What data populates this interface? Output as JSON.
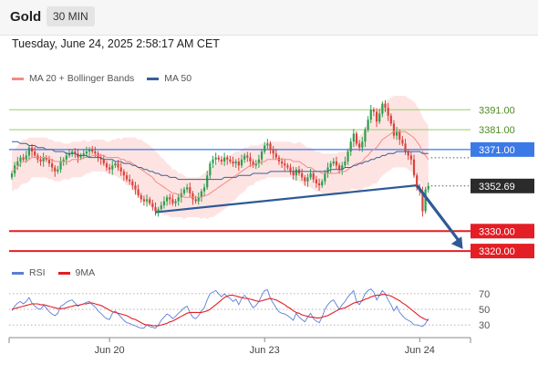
{
  "header": {
    "symbol": "Gold",
    "timeframe": "30 MIN",
    "datetime": "Tuesday, June 24, 2025 2:58:17 AM CET"
  },
  "legend": [
    {
      "label": "MA 20 + Bollinger Bands",
      "color": "#f28b82"
    },
    {
      "label": "MA 50",
      "color": "#3a5f98"
    }
  ],
  "rsi_legend": [
    {
      "label": "RSI",
      "color": "#5b7fd6"
    },
    {
      "label": "9MA",
      "color": "#e31e24"
    }
  ],
  "colors": {
    "bull": "#2e9e4f",
    "bear": "#d9433a",
    "trendline": "#2e5a96",
    "arrow": "#2e5a96",
    "support": "#e31e24",
    "resistance": "#9acd6a",
    "current_level": "#3b79e6",
    "bollinger_fill": "#fde3e1",
    "price_tag": "#2b2b2b"
  },
  "chart_data": [
    {
      "type": "candlestick",
      "title": "",
      "instrument": "Gold",
      "timeframe": "30 MIN",
      "x_ticks": [
        "Jun 20",
        "Jun 23",
        "Jun 24"
      ],
      "ylim": [
        3315,
        3398
      ],
      "current_price": 3352.69,
      "levels": [
        {
          "value": 3391.0,
          "label": "3391.00",
          "kind": "resistance"
        },
        {
          "value": 3381.0,
          "label": "3381.00",
          "kind": "resistance"
        },
        {
          "value": 3371.0,
          "label": "3371.00",
          "kind": "pivot"
        },
        {
          "value": 3330.0,
          "label": "3330.00",
          "kind": "support"
        },
        {
          "value": 3320.0,
          "label": "3320.00",
          "kind": "support"
        }
      ],
      "trendline": {
        "from": {
          "bar": 50,
          "price": 3339.5
        },
        "to": {
          "bar": 141,
          "price": 3353
        }
      },
      "projection_arrow": {
        "from": {
          "bar": 141,
          "price": 3353
        },
        "to": {
          "bar": 157,
          "price": 3321
        }
      },
      "close": [
        3359,
        3363,
        3365,
        3367,
        3366,
        3368,
        3372,
        3370,
        3368,
        3366,
        3365,
        3367,
        3366,
        3364,
        3362,
        3360,
        3361,
        3365,
        3366,
        3368,
        3369,
        3370,
        3369,
        3367,
        3368,
        3369,
        3370,
        3371,
        3370,
        3369,
        3367,
        3366,
        3364,
        3362,
        3361,
        3363,
        3364,
        3362,
        3360,
        3358,
        3356,
        3355,
        3353,
        3351,
        3348,
        3346,
        3345,
        3346,
        3344,
        3342,
        3340,
        3341,
        3343,
        3345,
        3347,
        3346,
        3344,
        3345,
        3347,
        3349,
        3351,
        3352,
        3349,
        3346,
        3345,
        3347,
        3350,
        3352,
        3358,
        3364,
        3366,
        3367,
        3366,
        3365,
        3367,
        3366,
        3365,
        3364,
        3365,
        3363,
        3366,
        3368,
        3367,
        3365,
        3363,
        3364,
        3366,
        3370,
        3373,
        3374,
        3371,
        3369,
        3367,
        3365,
        3364,
        3363,
        3362,
        3360,
        3358,
        3361,
        3359,
        3357,
        3355,
        3357,
        3359,
        3356,
        3354,
        3353,
        3355,
        3359,
        3362,
        3364,
        3365,
        3363,
        3361,
        3363,
        3365,
        3370,
        3375,
        3379,
        3374,
        3372,
        3375,
        3381,
        3386,
        3391,
        3390,
        3385,
        3389,
        3394,
        3392,
        3388,
        3384,
        3378,
        3380,
        3376,
        3374,
        3370,
        3368,
        3366,
        3358,
        3352,
        3350,
        3340,
        3351,
        3352.69
      ],
      "ma20": [
        3360,
        3361,
        3362,
        3364,
        3365,
        3365,
        3366,
        3367,
        3367,
        3367,
        3367,
        3367,
        3367,
        3366,
        3366,
        3365,
        3365,
        3365,
        3365,
        3365,
        3365,
        3366,
        3366,
        3366,
        3366,
        3367,
        3367,
        3367,
        3368,
        3368,
        3368,
        3368,
        3368,
        3367,
        3367,
        3367,
        3367,
        3367,
        3366,
        3366,
        3365,
        3365,
        3364,
        3363,
        3362,
        3361,
        3360,
        3359,
        3358,
        3357,
        3355,
        3354,
        3353,
        3352,
        3351,
        3350,
        3349,
        3349,
        3348,
        3348,
        3347,
        3347,
        3347,
        3347,
        3347,
        3347,
        3347,
        3348,
        3348,
        3349,
        3350,
        3351,
        3352,
        3353,
        3354,
        3355,
        3356,
        3357,
        3358,
        3359,
        3360,
        3361,
        3362,
        3363,
        3363,
        3364,
        3364,
        3365,
        3365,
        3366,
        3366,
        3366,
        3366,
        3366,
        3366,
        3366,
        3366,
        3366,
        3365,
        3365,
        3365,
        3364,
        3363,
        3362,
        3362,
        3361,
        3360,
        3360,
        3359,
        3359,
        3359,
        3359,
        3359,
        3359,
        3360,
        3360,
        3360,
        3361,
        3362,
        3363,
        3364,
        3364,
        3365,
        3367,
        3368,
        3370,
        3371,
        3372,
        3374,
        3376,
        3377,
        3378,
        3379,
        3380,
        3380,
        3380,
        3380,
        3380,
        3379,
        3378,
        3377,
        3375,
        3373,
        3370,
        3368,
        3366
      ],
      "ma50": [
        3375,
        3375,
        3375,
        3374,
        3374,
        3374,
        3373,
        3373,
        3373,
        3372,
        3372,
        3372,
        3371,
        3371,
        3371,
        3370,
        3370,
        3370,
        3370,
        3369,
        3369,
        3369,
        3369,
        3368,
        3368,
        3368,
        3368,
        3367,
        3367,
        3367,
        3367,
        3367,
        3366,
        3366,
        3366,
        3366,
        3365,
        3365,
        3365,
        3364,
        3364,
        3364,
        3363,
        3363,
        3362,
        3362,
        3361,
        3361,
        3360,
        3360,
        3359,
        3359,
        3358,
        3358,
        3358,
        3357,
        3357,
        3357,
        3356,
        3356,
        3356,
        3356,
        3356,
        3356,
        3356,
        3356,
        3356,
        3356,
        3356,
        3356,
        3356,
        3356,
        3356,
        3356,
        3357,
        3357,
        3357,
        3357,
        3357,
        3358,
        3358,
        3358,
        3358,
        3358,
        3359,
        3359,
        3359,
        3359,
        3359,
        3359,
        3360,
        3360,
        3360,
        3360,
        3360,
        3360,
        3360,
        3360,
        3360,
        3360,
        3360,
        3360,
        3360,
        3360,
        3360,
        3360,
        3360,
        3360,
        3360,
        3360,
        3360,
        3361,
        3361,
        3361,
        3361,
        3361,
        3362,
        3362,
        3362,
        3363,
        3363,
        3364,
        3364,
        3365,
        3365,
        3366,
        3366,
        3367,
        3367,
        3368,
        3368,
        3369,
        3369,
        3369,
        3370,
        3370,
        3370,
        3370,
        3370,
        3370,
        3370,
        3370,
        3370,
        3369,
        3369,
        3369
      ],
      "bb_width": [
        10,
        10,
        11,
        11,
        11,
        11,
        11,
        10,
        10,
        10,
        10,
        10,
        10,
        10,
        10,
        10,
        10,
        10,
        9,
        9,
        9,
        9,
        9,
        9,
        9,
        9,
        8,
        8,
        8,
        8,
        8,
        8,
        8,
        8,
        8,
        9,
        9,
        10,
        10,
        11,
        12,
        12,
        13,
        14,
        14,
        15,
        15,
        15,
        15,
        15,
        15,
        15,
        14,
        14,
        13,
        13,
        12,
        12,
        11,
        11,
        11,
        10,
        10,
        10,
        10,
        10,
        11,
        11,
        12,
        12,
        13,
        13,
        13,
        13,
        13,
        13,
        12,
        12,
        12,
        11,
        11,
        11,
        10,
        10,
        10,
        9,
        9,
        9,
        9,
        9,
        9,
        9,
        9,
        9,
        9,
        9,
        9,
        9,
        9,
        9,
        10,
        10,
        10,
        10,
        10,
        10,
        10,
        10,
        10,
        10,
        10,
        10,
        10,
        10,
        10,
        10,
        10,
        11,
        11,
        12,
        13,
        14,
        14,
        15,
        16,
        17,
        17,
        18,
        18,
        18,
        18,
        18,
        18,
        18,
        18,
        18,
        18,
        18,
        18,
        18,
        18,
        18,
        18,
        17,
        17,
        17
      ]
    },
    {
      "type": "line",
      "title": "RSI",
      "yticks": [
        70,
        50,
        30
      ],
      "ylim": [
        22,
        78
      ],
      "series": [
        {
          "name": "RSI",
          "values": [
            48,
            54,
            58,
            60,
            57,
            60,
            65,
            58,
            54,
            51,
            50,
            55,
            52,
            47,
            44,
            42,
            45,
            54,
            56,
            59,
            61,
            62,
            58,
            54,
            56,
            57,
            59,
            60,
            56,
            53,
            48,
            45,
            41,
            38,
            37,
            45,
            48,
            44,
            40,
            36,
            33,
            32,
            30,
            29,
            27,
            26,
            26,
            30,
            28,
            27,
            26,
            30,
            36,
            40,
            44,
            42,
            38,
            41,
            45,
            48,
            52,
            54,
            46,
            40,
            38,
            42,
            48,
            52,
            62,
            70,
            72,
            74,
            70,
            66,
            70,
            66,
            64,
            60,
            63,
            56,
            64,
            68,
            64,
            58,
            52,
            55,
            60,
            68,
            74,
            75,
            64,
            58,
            52,
            47,
            45,
            44,
            42,
            39,
            36,
            45,
            40,
            37,
            34,
            40,
            45,
            38,
            35,
            33,
            40,
            50,
            56,
            60,
            62,
            56,
            50,
            56,
            60,
            66,
            70,
            74,
            60,
            56,
            62,
            70,
            74,
            76,
            72,
            62,
            68,
            74,
            70,
            62,
            56,
            48,
            54,
            46,
            42,
            38,
            36,
            34,
            30,
            30,
            29,
            28,
            32,
            38
          ]
        },
        {
          "name": "9MA",
          "values": [
            50,
            51,
            52,
            53,
            54,
            55,
            56,
            57,
            57,
            57,
            56,
            56,
            55,
            54,
            53,
            52,
            51,
            51,
            51,
            52,
            53,
            54,
            55,
            55,
            56,
            57,
            57,
            58,
            58,
            57,
            56,
            55,
            53,
            51,
            49,
            47,
            46,
            45,
            44,
            43,
            42,
            40,
            38,
            37,
            35,
            33,
            31,
            30,
            30,
            29,
            29,
            29,
            30,
            31,
            32,
            34,
            35,
            37,
            39,
            41,
            43,
            45,
            46,
            46,
            46,
            46,
            46,
            47,
            48,
            50,
            53,
            56,
            59,
            62,
            65,
            67,
            68,
            68,
            67,
            66,
            65,
            64,
            64,
            63,
            62,
            61,
            60,
            61,
            62,
            63,
            64,
            63,
            62,
            60,
            58,
            56,
            53,
            51,
            48,
            46,
            45,
            43,
            42,
            41,
            40,
            40,
            39,
            39,
            40,
            41,
            42,
            44,
            46,
            48,
            50,
            51,
            52,
            54,
            56,
            58,
            59,
            60,
            61,
            63,
            64,
            66,
            67,
            68,
            68,
            69,
            69,
            68,
            67,
            65,
            63,
            61,
            58,
            56,
            53,
            50,
            47,
            44,
            41,
            39,
            37,
            36
          ]
        }
      ]
    }
  ]
}
